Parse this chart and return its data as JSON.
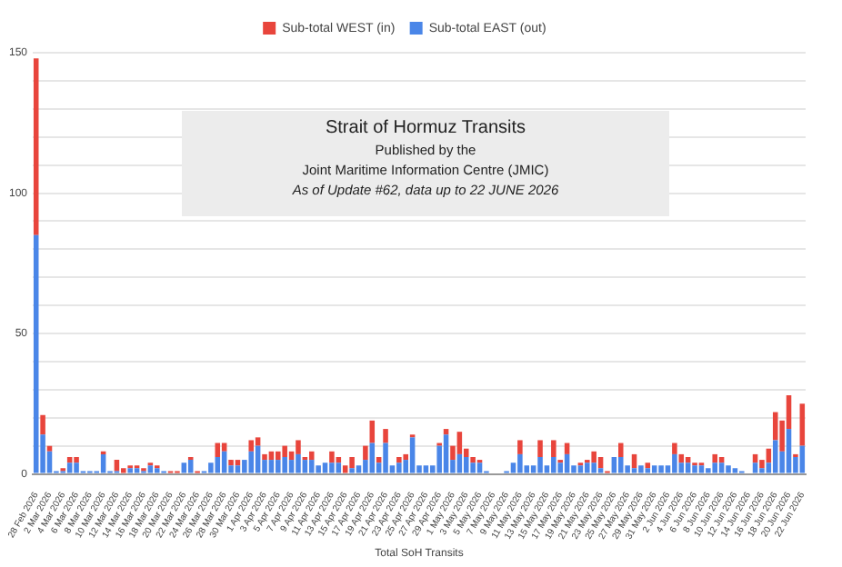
{
  "chart_data": {
    "type": "bar",
    "title": "Strait of Hormuz Transits",
    "subtitle": "Published by the",
    "annotations": [
      "Joint Maritime Information Centre (JMIC)",
      "As of Update #62, data up to 22 JUNE 2026"
    ],
    "xlabel": "Total SoH Transits",
    "categories": [
      "28 Feb 2026",
      null,
      "2 Mar 2026",
      null,
      "4 Mar 2026",
      null,
      "6 Mar 2026",
      null,
      "8 Mar 2026",
      null,
      "10 Mar 2026",
      null,
      "12 Mar 2026",
      null,
      "14 Mar 2026",
      null,
      "16 Mar 2026",
      null,
      "18 Mar 2026",
      null,
      "20 Mar 2026",
      null,
      "22 Mar 2026",
      null,
      "24 Mar 2026",
      null,
      "26 Mar 2026",
      null,
      "28 Mar 2026",
      null,
      "30 Mar 2026",
      null,
      "1 Apr 2026",
      null,
      "3 Apr 2026",
      null,
      "5 Apr 2026",
      null,
      "7 Apr 2026",
      null,
      "9 Apr 2026",
      null,
      "11 Apr 2026",
      null,
      "13 Apr 2026",
      null,
      "15 Apr 2026",
      null,
      "17 Apr 2026",
      null,
      "19 Apr 2026",
      null,
      "21 Apr 2026",
      null,
      "23 Apr 2026",
      null,
      "25 Apr 2026",
      null,
      "27 Apr 2026",
      null,
      "29 Apr 2026",
      null,
      "1 May 2026",
      null,
      "3 May 2026",
      null,
      "5 May 2026",
      null,
      "7 May 2026",
      null,
      "9 May 2026",
      null,
      "11 May 2026",
      null,
      "13 May 2026",
      null,
      "15 May 2026",
      null,
      "17 May 2026",
      null,
      "19 May 2026",
      null,
      "21 May 2026",
      null,
      "23 May 2026",
      null,
      "25 May 2026",
      null,
      "27 May 2026",
      null,
      "29 May 2026",
      null,
      "31 May 2026",
      null,
      "2 Jun 2026",
      null,
      "4 Jun 2026",
      null,
      "6 Jun 2026",
      null,
      "8 Jun 2026",
      null,
      "10 Jun 2026",
      null,
      "12 Jun 2026",
      null,
      "14 Jun 2026",
      null,
      "16 Jun 2026",
      null,
      "18 Jun 2026",
      null,
      "20 Jun 2026",
      null,
      "22 Jun 2026"
    ],
    "stacked": true,
    "series": [
      {
        "name": "Sub-total EAST (out)",
        "color": "#4a86e8",
        "values": [
          85,
          14,
          8,
          1,
          1,
          4,
          4,
          1,
          1,
          1,
          7,
          1,
          1,
          0,
          2,
          2,
          1,
          3,
          2,
          1,
          0,
          0,
          4,
          5,
          0,
          1,
          4,
          6,
          8,
          3,
          3,
          5,
          8,
          10,
          5,
          5,
          5,
          6,
          5,
          7,
          5,
          5,
          3,
          4,
          4,
          4,
          0,
          2,
          3,
          5,
          11,
          4,
          11,
          3,
          4,
          5,
          13,
          3,
          3,
          3,
          10,
          14,
          5,
          7,
          6,
          4,
          4,
          1,
          0,
          0,
          1,
          4,
          7,
          3,
          3,
          6,
          3,
          6,
          4,
          7,
          3,
          3,
          4,
          4,
          2,
          0,
          6,
          6,
          3,
          2,
          3,
          2,
          3,
          3,
          3,
          7,
          4,
          4,
          3,
          3,
          2,
          4,
          4,
          3,
          2,
          1,
          0,
          4,
          2,
          4,
          12,
          8,
          16,
          6,
          10
        ]
      },
      {
        "name": "Sub-total WEST (in)",
        "color": "#e8453c",
        "values": [
          63,
          7,
          2,
          0,
          1,
          2,
          2,
          0,
          0,
          0,
          1,
          0,
          4,
          2,
          1,
          1,
          1,
          1,
          1,
          0,
          1,
          1,
          0,
          1,
          1,
          0,
          0,
          5,
          3,
          2,
          2,
          0,
          4,
          3,
          2,
          3,
          3,
          4,
          3,
          5,
          1,
          3,
          0,
          0,
          4,
          2,
          3,
          4,
          0,
          5,
          8,
          2,
          5,
          0,
          2,
          2,
          1,
          0,
          0,
          0,
          1,
          2,
          5,
          8,
          3,
          2,
          1,
          0,
          0,
          0,
          0,
          0,
          5,
          0,
          0,
          6,
          0,
          6,
          1,
          4,
          0,
          1,
          1,
          4,
          4,
          1,
          0,
          5,
          0,
          5,
          0,
          2,
          0,
          0,
          0,
          4,
          3,
          2,
          1,
          1,
          0,
          3,
          2,
          0,
          0,
          0,
          0,
          3,
          3,
          5,
          10,
          11,
          12,
          1,
          15
        ]
      }
    ],
    "ylim": [
      0,
      150
    ],
    "yticks": [
      0,
      {
        "value": 10,
        "label": null
      },
      {
        "value": 20,
        "label": null
      },
      {
        "value": 30,
        "label": null
      },
      {
        "value": 40,
        "label": null
      },
      50,
      {
        "value": 60,
        "label": null
      },
      {
        "value": 70,
        "label": null
      },
      {
        "value": 80,
        "label": null
      },
      {
        "value": 90,
        "label": null
      },
      100,
      {
        "value": 110,
        "label": null
      },
      {
        "value": 120,
        "label": null
      },
      {
        "value": 130,
        "label": null
      },
      {
        "value": 140,
        "label": null
      },
      150
    ],
    "grid": "y",
    "legend": "top"
  }
}
